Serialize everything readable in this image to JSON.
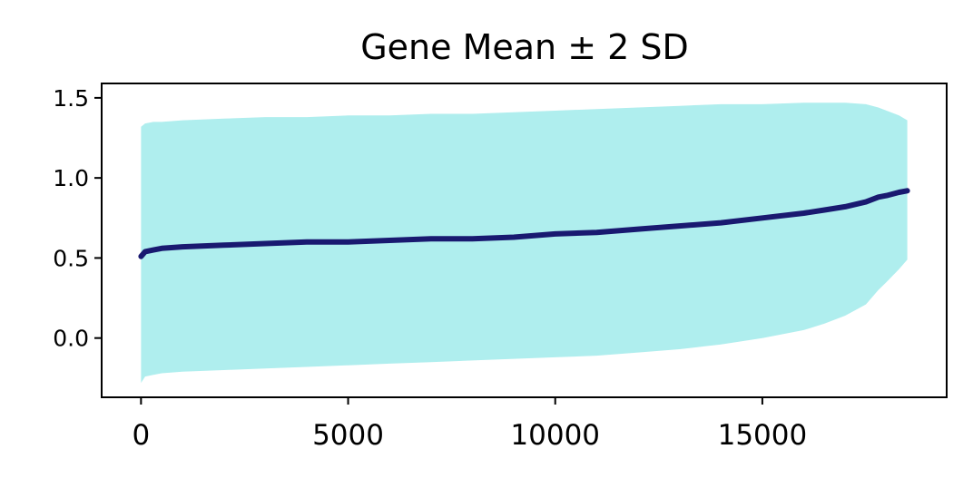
{
  "chart_data": {
    "type": "area",
    "title": "Gene Mean ± 2 SD",
    "xlabel": "",
    "ylabel": "",
    "xlim": [
      -950,
      19450
    ],
    "ylim": [
      -0.37,
      1.59
    ],
    "xticks": [
      0,
      5000,
      10000,
      15000
    ],
    "xtick_labels": [
      "0",
      "5000",
      "10000",
      "15000"
    ],
    "yticks": [
      0.0,
      0.5,
      1.0,
      1.5
    ],
    "ytick_labels": [
      "0.0",
      "0.5",
      "1.0",
      "1.5"
    ],
    "grid": false,
    "colors": {
      "band": "#afeeee",
      "mean": "#191970"
    },
    "x": [
      0,
      100,
      300,
      500,
      1000,
      2000,
      3000,
      4000,
      5000,
      6000,
      7000,
      8000,
      9000,
      10000,
      11000,
      12000,
      13000,
      14000,
      15000,
      16000,
      16500,
      17000,
      17500,
      17800,
      18000,
      18300,
      18500
    ],
    "series": [
      {
        "kind": "band",
        "lower": [
          -0.28,
          -0.24,
          -0.23,
          -0.22,
          -0.21,
          -0.2,
          -0.19,
          -0.18,
          -0.17,
          -0.16,
          -0.15,
          -0.14,
          -0.13,
          -0.12,
          -0.11,
          -0.09,
          -0.07,
          -0.04,
          0.0,
          0.05,
          0.09,
          0.14,
          0.21,
          0.3,
          0.35,
          0.43,
          0.49
        ],
        "upper": [
          1.32,
          1.34,
          1.35,
          1.35,
          1.36,
          1.37,
          1.38,
          1.38,
          1.39,
          1.39,
          1.4,
          1.4,
          1.41,
          1.42,
          1.43,
          1.44,
          1.45,
          1.46,
          1.46,
          1.47,
          1.47,
          1.47,
          1.46,
          1.44,
          1.42,
          1.39,
          1.36
        ]
      },
      {
        "kind": "line",
        "values": [
          0.51,
          0.54,
          0.55,
          0.56,
          0.57,
          0.58,
          0.59,
          0.6,
          0.6,
          0.61,
          0.62,
          0.62,
          0.63,
          0.65,
          0.66,
          0.68,
          0.7,
          0.72,
          0.75,
          0.78,
          0.8,
          0.82,
          0.85,
          0.88,
          0.89,
          0.91,
          0.92
        ]
      }
    ]
  }
}
